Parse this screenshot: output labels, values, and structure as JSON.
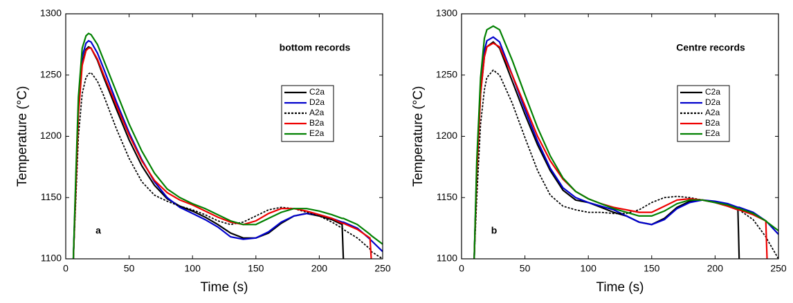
{
  "chart_data": [
    {
      "type": "line",
      "annotation": "bottom records",
      "panel_label": "a",
      "xlabel": "Time (s)",
      "ylabel": "Temperature (°C)",
      "xlim": [
        0,
        250
      ],
      "ylim": [
        1100,
        1300
      ],
      "xticks": [
        0,
        50,
        100,
        150,
        200,
        250
      ],
      "yticks": [
        1100,
        1150,
        1200,
        1250,
        1300
      ],
      "legend": "upper right",
      "x": [
        6,
        8,
        10,
        13,
        16,
        18,
        20,
        25,
        30,
        40,
        50,
        60,
        70,
        80,
        90,
        100,
        110,
        120,
        130,
        140,
        150,
        160,
        170,
        180,
        190,
        200,
        210,
        218,
        219,
        230,
        240,
        241,
        250
      ],
      "series": [
        {
          "name": "C2a",
          "color": "#000000",
          "linestyle": "solid",
          "values": [
            1100,
            1160,
            1220,
            1260,
            1271,
            1273,
            1272,
            1262,
            1248,
            1222,
            1197,
            1176,
            1160,
            1149,
            1143,
            1139,
            1134,
            1128,
            1121,
            1117,
            1117,
            1121,
            1129,
            1135,
            1137,
            1135,
            1132,
            1128,
            1100,
            null,
            null,
            null,
            null
          ]
        },
        {
          "name": "D2a",
          "color": "#0000cc",
          "linestyle": "solid",
          "values": [
            1100,
            1165,
            1225,
            1265,
            1276,
            1278,
            1277,
            1268,
            1255,
            1228,
            1203,
            1181,
            1163,
            1150,
            1142,
            1137,
            1132,
            1126,
            1118,
            1116,
            1117,
            1122,
            1130,
            1135,
            1137,
            1136,
            1133,
            1130,
            1130,
            1125,
            1116,
            1115,
            1106
          ]
        },
        {
          "name": "A2a",
          "color": "#000000",
          "linestyle": "dashed",
          "values": [
            1100,
            1150,
            1200,
            1235,
            1248,
            1251,
            1252,
            1245,
            1233,
            1206,
            1182,
            1163,
            1152,
            1147,
            1143,
            1140,
            1136,
            1131,
            1128,
            1130,
            1135,
            1140,
            1142,
            1141,
            1138,
            1135,
            1130,
            1125,
            1124,
            1117,
            1108,
            1106,
            1100
          ]
        },
        {
          "name": "B2a",
          "color": "#ee0000",
          "linestyle": "solid",
          "values": [
            1100,
            1160,
            1218,
            1258,
            1270,
            1272,
            1272,
            1263,
            1250,
            1225,
            1201,
            1180,
            1164,
            1154,
            1148,
            1144,
            1139,
            1134,
            1130,
            1128,
            1131,
            1137,
            1141,
            1141,
            1139,
            1136,
            1133,
            1129,
            1129,
            1124,
            1117,
            1100,
            null
          ]
        },
        {
          "name": "E2a",
          "color": "#008000",
          "linestyle": "solid",
          "values": [
            1100,
            1170,
            1232,
            1272,
            1282,
            1284,
            1283,
            1275,
            1262,
            1236,
            1210,
            1188,
            1170,
            1157,
            1150,
            1145,
            1141,
            1136,
            1131,
            1128,
            1128,
            1133,
            1138,
            1141,
            1141,
            1139,
            1136,
            1133,
            1133,
            1128,
            1120,
            1119,
            1112
          ]
        }
      ]
    },
    {
      "type": "line",
      "annotation": "Centre records",
      "panel_label": "b",
      "xlabel": "Time (s)",
      "ylabel": "Temperature (°C)",
      "xlim": [
        0,
        250
      ],
      "ylim": [
        1100,
        1300
      ],
      "xticks": [
        0,
        50,
        100,
        150,
        200,
        250
      ],
      "yticks": [
        1100,
        1150,
        1200,
        1250,
        1300
      ],
      "legend": "upper right",
      "x": [
        10,
        12,
        15,
        18,
        20,
        25,
        30,
        40,
        50,
        60,
        70,
        80,
        90,
        100,
        110,
        120,
        130,
        140,
        150,
        160,
        170,
        180,
        190,
        200,
        210,
        218,
        219,
        230,
        240,
        241,
        250
      ],
      "series": [
        {
          "name": "C2a",
          "color": "#000000",
          "linestyle": "solid",
          "values": [
            1100,
            1170,
            1235,
            1265,
            1273,
            1277,
            1272,
            1245,
            1218,
            1193,
            1172,
            1156,
            1148,
            1146,
            1142,
            1138,
            1135,
            1130,
            1128,
            1133,
            1142,
            1147,
            1148,
            1146,
            1143,
            1140,
            1100,
            null,
            null,
            null,
            null
          ]
        },
        {
          "name": "D2a",
          "color": "#0000cc",
          "linestyle": "solid",
          "values": [
            1100,
            1175,
            1240,
            1270,
            1278,
            1281,
            1277,
            1250,
            1222,
            1196,
            1174,
            1158,
            1150,
            1146,
            1143,
            1140,
            1135,
            1130,
            1128,
            1132,
            1141,
            1146,
            1148,
            1147,
            1145,
            1142,
            1142,
            1138,
            1131,
            1130,
            1120
          ]
        },
        {
          "name": "A2a",
          "color": "#000000",
          "linestyle": "dashed",
          "values": [
            1100,
            1150,
            1210,
            1238,
            1248,
            1254,
            1250,
            1227,
            1199,
            1172,
            1152,
            1143,
            1140,
            1138,
            1138,
            1137,
            1137,
            1140,
            1146,
            1150,
            1151,
            1150,
            1148,
            1146,
            1143,
            1140,
            1140,
            1132,
            1118,
            1116,
            1100
          ]
        },
        {
          "name": "B2a",
          "color": "#ee0000",
          "linestyle": "solid",
          "values": [
            1100,
            1170,
            1235,
            1265,
            1273,
            1276,
            1273,
            1250,
            1225,
            1200,
            1180,
            1165,
            1155,
            1149,
            1145,
            1142,
            1140,
            1138,
            1138,
            1143,
            1148,
            1149,
            1148,
            1146,
            1143,
            1140,
            1140,
            1136,
            1131,
            1100,
            null
          ]
        },
        {
          "name": "E2a",
          "color": "#008000",
          "linestyle": "solid",
          "values": [
            1100,
            1180,
            1248,
            1280,
            1287,
            1290,
            1287,
            1262,
            1234,
            1207,
            1184,
            1166,
            1155,
            1149,
            1145,
            1141,
            1138,
            1135,
            1135,
            1139,
            1145,
            1148,
            1148,
            1146,
            1144,
            1141,
            1141,
            1137,
            1131,
            1130,
            1123
          ]
        }
      ]
    }
  ]
}
